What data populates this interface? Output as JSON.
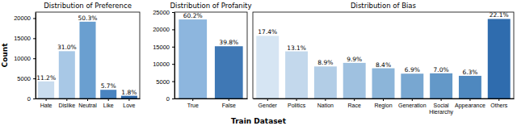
{
  "chart_data": [
    {
      "type": "bar",
      "title": "Distribution of Preference",
      "ylabel": "Count",
      "categories": [
        "Hate",
        "Dislike",
        "Neutral",
        "Like",
        "Love"
      ],
      "values": [
        4256,
        11780,
        19114,
        2166,
        684
      ],
      "value_labels": [
        "11.2%",
        "31.0%",
        "50.3%",
        "5.7%",
        "1.8%"
      ],
      "colors": [
        "#c9dcee",
        "#a8c8e6",
        "#6a9fd0",
        "#4a84c0",
        "#2f69a8"
      ],
      "ylim": [
        0,
        21500
      ],
      "yticks": [
        0,
        5000,
        10000,
        15000,
        20000
      ],
      "data_labels": true,
      "grid": false
    },
    {
      "type": "bar",
      "title": "Distribution of Profanity",
      "xlabel": "Train Dataset",
      "categories": [
        "True",
        "False"
      ],
      "values": [
        22876,
        15124
      ],
      "value_labels": [
        "60.2%",
        "39.8%"
      ],
      "colors": [
        "#8db6de",
        "#3f78b5"
      ],
      "ylim": [
        0,
        25000
      ],
      "yticks": [
        0,
        5000,
        10000,
        15000,
        20000,
        25000
      ],
      "data_labels": true,
      "grid": false
    },
    {
      "type": "bar",
      "title": "Distribution of Bias",
      "categories": [
        "Gender",
        "Politics",
        "Nation",
        "Race",
        "Region",
        "Generation",
        "Social\nHierarchy",
        "Appearance",
        "Others"
      ],
      "values": [
        17.4,
        13.1,
        8.9,
        9.9,
        8.4,
        6.9,
        7.0,
        6.3,
        22.1
      ],
      "value_labels": [
        "17.4%",
        "13.1%",
        "8.9%",
        "9.9%",
        "8.4%",
        "6.9%",
        "7.0%",
        "6.3%",
        "22.1%"
      ],
      "colors": [
        "#d6e5f3",
        "#c3d8ec",
        "#b2cde6",
        "#9fc1e0",
        "#8cb5d9",
        "#78a7d1",
        "#6398c8",
        "#4e88bf",
        "#2f6cae"
      ],
      "ylim": [
        0,
        24
      ],
      "tick_labels": "x",
      "data_labels": true,
      "grid": false
    }
  ]
}
